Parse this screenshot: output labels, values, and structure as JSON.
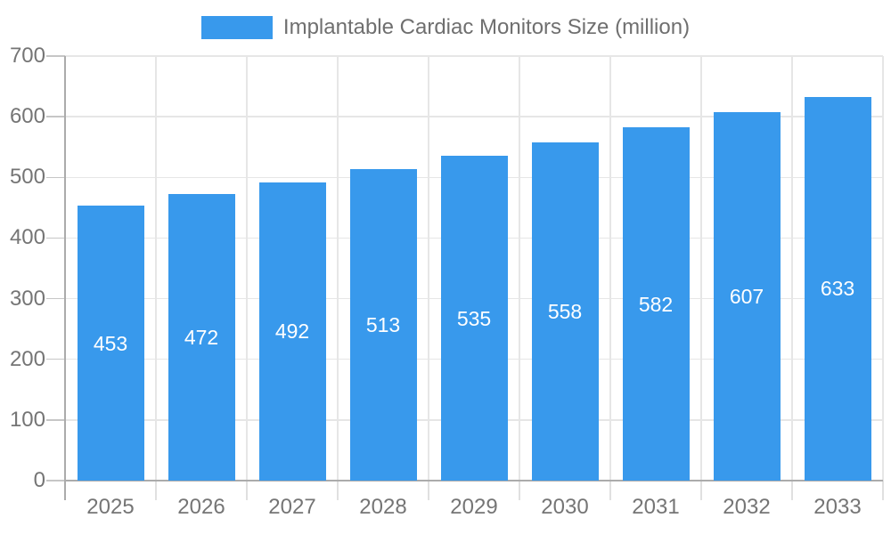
{
  "legend": {
    "label": "Implantable Cardiac Monitors Size (million)"
  },
  "colors": {
    "bar": "#3899EC",
    "background": "#FFFFFF",
    "axis_text": "#757575",
    "legend_text": "#6F6F6F",
    "value_text": "#FFFFFF",
    "gridline": "#E6E6E6",
    "axis_line": "#ABABAB",
    "y_tick": "#C6C6C6",
    "x_tick": "#E0E0E0"
  },
  "chart_data": {
    "type": "bar",
    "title": "",
    "series_name": "Implantable Cardiac Monitors Size (million)",
    "categories": [
      "2025",
      "2026",
      "2027",
      "2028",
      "2029",
      "2030",
      "2031",
      "2032",
      "2033"
    ],
    "values": [
      453,
      472,
      492,
      513,
      535,
      558,
      582,
      607,
      633
    ],
    "xlabel": "",
    "ylabel": "",
    "ylim": [
      0,
      700
    ],
    "yticks": [
      0,
      100,
      200,
      300,
      400,
      500,
      600,
      700
    ],
    "grid": true,
    "legend_position": "top-center",
    "value_label_position": "inside-center-vertical"
  }
}
